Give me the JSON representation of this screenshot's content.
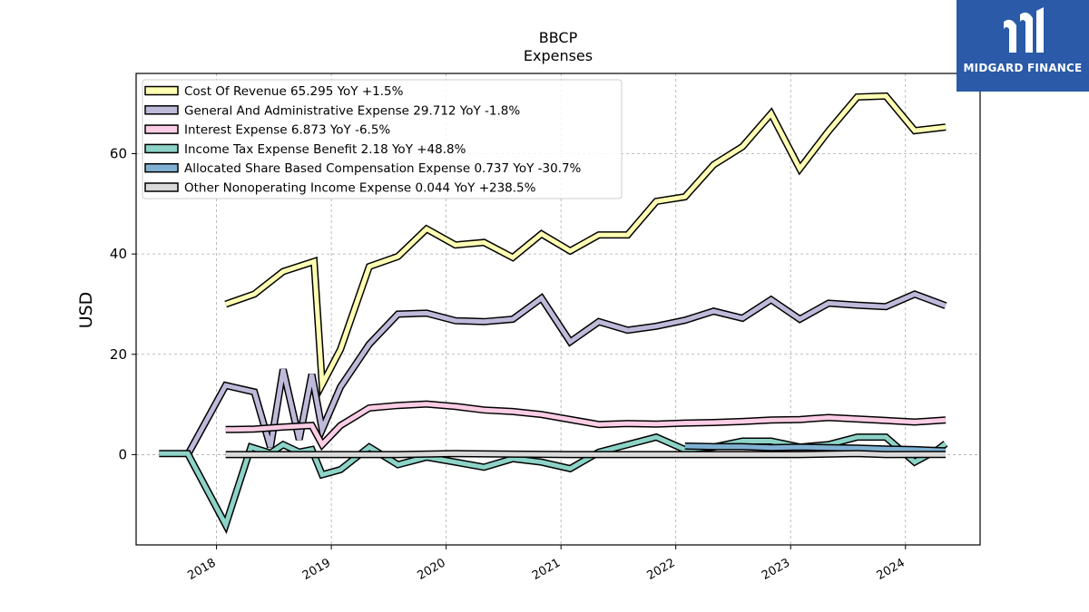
{
  "chart_data": {
    "type": "line",
    "title": "BBCP",
    "subtitle": "Expenses",
    "xlabel": "",
    "ylabel": "USD",
    "xlim": [
      2017.3,
      2024.65
    ],
    "ylim": [
      -18,
      76
    ],
    "yticks": [
      0,
      20,
      40,
      60
    ],
    "xticks": [
      "2018",
      "2019",
      "2020",
      "2021",
      "2022",
      "2023",
      "2024"
    ],
    "grid": true,
    "legend_position": "top-left",
    "series": [
      {
        "name": "Cost Of Revenue  65.295 YoY +1.5%",
        "color": "#ffffb3",
        "points": [
          [
            2018.08,
            30.0
          ],
          [
            2018.33,
            32.0
          ],
          [
            2018.58,
            36.5
          ],
          [
            2018.85,
            38.5
          ],
          [
            2018.92,
            14.0
          ],
          [
            2019.08,
            21.0
          ],
          [
            2019.33,
            37.5
          ],
          [
            2019.58,
            39.5
          ],
          [
            2019.83,
            45.0
          ],
          [
            2020.08,
            41.8
          ],
          [
            2020.33,
            42.3
          ],
          [
            2020.58,
            39.3
          ],
          [
            2020.83,
            44.0
          ],
          [
            2021.08,
            40.6
          ],
          [
            2021.33,
            43.8
          ],
          [
            2021.58,
            43.8
          ],
          [
            2021.83,
            50.5
          ],
          [
            2022.08,
            51.4
          ],
          [
            2022.33,
            57.8
          ],
          [
            2022.58,
            61.4
          ],
          [
            2022.83,
            68.0
          ],
          [
            2023.08,
            57.0
          ],
          [
            2023.33,
            64.5
          ],
          [
            2023.58,
            71.3
          ],
          [
            2023.83,
            71.5
          ],
          [
            2024.08,
            64.6
          ],
          [
            2024.35,
            65.3
          ]
        ]
      },
      {
        "name": "General And Administrative Expense  29.712 YoY -1.8%",
        "color": "#bebada",
        "points": [
          [
            2017.75,
            0.0
          ],
          [
            2018.08,
            13.8
          ],
          [
            2018.33,
            12.5
          ],
          [
            2018.47,
            1.5
          ],
          [
            2018.58,
            17.0
          ],
          [
            2018.72,
            3.0
          ],
          [
            2018.83,
            16.0
          ],
          [
            2018.92,
            5.0
          ],
          [
            2019.08,
            13.5
          ],
          [
            2019.33,
            22.0
          ],
          [
            2019.58,
            28.0
          ],
          [
            2019.83,
            28.2
          ],
          [
            2020.08,
            26.7
          ],
          [
            2020.33,
            26.5
          ],
          [
            2020.58,
            27.0
          ],
          [
            2020.83,
            31.2
          ],
          [
            2021.08,
            22.5
          ],
          [
            2021.33,
            26.5
          ],
          [
            2021.58,
            24.8
          ],
          [
            2021.83,
            25.6
          ],
          [
            2022.08,
            26.8
          ],
          [
            2022.33,
            28.6
          ],
          [
            2022.58,
            27.2
          ],
          [
            2022.83,
            30.9
          ],
          [
            2023.08,
            27.0
          ],
          [
            2023.33,
            30.2
          ],
          [
            2023.58,
            29.8
          ],
          [
            2023.83,
            29.5
          ],
          [
            2024.08,
            32.0
          ],
          [
            2024.35,
            29.7
          ]
        ]
      },
      {
        "name": "Interest Expense  6.873 YoY -6.5%",
        "color": "#fccde5",
        "points": [
          [
            2018.08,
            5.0
          ],
          [
            2018.33,
            5.1
          ],
          [
            2018.58,
            5.5
          ],
          [
            2018.83,
            5.8
          ],
          [
            2018.92,
            2.0
          ],
          [
            2019.08,
            5.8
          ],
          [
            2019.33,
            9.3
          ],
          [
            2019.58,
            9.8
          ],
          [
            2019.83,
            10.1
          ],
          [
            2020.08,
            9.6
          ],
          [
            2020.33,
            8.9
          ],
          [
            2020.58,
            8.6
          ],
          [
            2020.83,
            8.0
          ],
          [
            2021.08,
            7.0
          ],
          [
            2021.33,
            6.0
          ],
          [
            2021.58,
            6.2
          ],
          [
            2021.83,
            6.1
          ],
          [
            2022.08,
            6.3
          ],
          [
            2022.33,
            6.4
          ],
          [
            2022.58,
            6.6
          ],
          [
            2022.83,
            6.9
          ],
          [
            2023.08,
            7.0
          ],
          [
            2023.33,
            7.4
          ],
          [
            2023.58,
            7.1
          ],
          [
            2023.83,
            6.8
          ],
          [
            2024.08,
            6.5
          ],
          [
            2024.35,
            6.9
          ]
        ]
      },
      {
        "name": "Income Tax Expense Benefit  2.18 YoY +48.8%",
        "color": "#8dd3c7",
        "points": [
          [
            2017.5,
            0.2
          ],
          [
            2017.75,
            0.2
          ],
          [
            2018.08,
            -14.0
          ],
          [
            2018.3,
            1.5
          ],
          [
            2018.47,
            0.3
          ],
          [
            2018.58,
            2.0
          ],
          [
            2018.72,
            0.5
          ],
          [
            2018.83,
            1.0
          ],
          [
            2018.92,
            -4.0
          ],
          [
            2019.08,
            -3.0
          ],
          [
            2019.33,
            1.5
          ],
          [
            2019.58,
            -2.0
          ],
          [
            2019.83,
            -0.5
          ],
          [
            2020.08,
            -1.5
          ],
          [
            2020.33,
            -2.5
          ],
          [
            2020.58,
            -0.8
          ],
          [
            2020.83,
            -1.5
          ],
          [
            2021.08,
            -2.8
          ],
          [
            2021.33,
            0.5
          ],
          [
            2021.58,
            2.0
          ],
          [
            2021.83,
            3.5
          ],
          [
            2022.08,
            1.0
          ],
          [
            2022.33,
            1.5
          ],
          [
            2022.58,
            2.7
          ],
          [
            2022.83,
            2.7
          ],
          [
            2023.08,
            1.5
          ],
          [
            2023.33,
            2.0
          ],
          [
            2023.58,
            3.5
          ],
          [
            2023.83,
            3.5
          ],
          [
            2024.08,
            -1.5
          ],
          [
            2024.28,
            1.0
          ],
          [
            2024.35,
            2.2
          ]
        ]
      },
      {
        "name": "Allocated Share Based Compensation Expense  0.737 YoY -30.7%",
        "color": "#80b1d3",
        "points": [
          [
            2022.08,
            1.7
          ],
          [
            2022.33,
            1.6
          ],
          [
            2022.58,
            1.6
          ],
          [
            2022.83,
            1.4
          ],
          [
            2023.08,
            1.5
          ],
          [
            2023.33,
            1.4
          ],
          [
            2023.58,
            1.3
          ],
          [
            2023.83,
            1.1
          ],
          [
            2024.08,
            1.0
          ],
          [
            2024.35,
            0.74
          ]
        ]
      },
      {
        "name": "Other Nonoperating Income Expense  0.044 YoY +238.5%",
        "color": "#d9d9d9",
        "points": [
          [
            2018.08,
            0.0
          ],
          [
            2018.58,
            0.0
          ],
          [
            2019.08,
            0.0
          ],
          [
            2019.58,
            0.0
          ],
          [
            2020.08,
            0.2
          ],
          [
            2020.58,
            0.1
          ],
          [
            2021.08,
            0.0
          ],
          [
            2021.58,
            0.0
          ],
          [
            2022.08,
            0.0
          ],
          [
            2022.58,
            0.0
          ],
          [
            2023.08,
            0.0
          ],
          [
            2023.58,
            0.2
          ],
          [
            2023.83,
            0.0
          ],
          [
            2024.35,
            0.04
          ]
        ]
      }
    ]
  },
  "logo": {
    "text": "MIDGARD FINANCE",
    "color": "#2a5aa8"
  }
}
